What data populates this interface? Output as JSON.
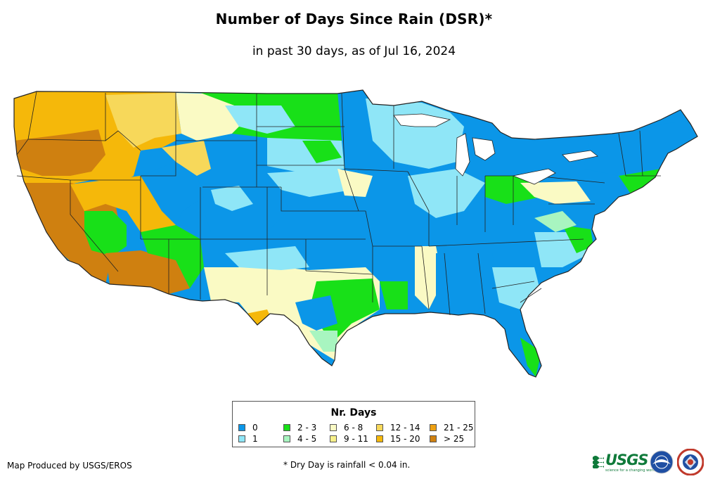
{
  "title": "Number of Days Since Rain (DSR)*",
  "subtitle": "in past 30 days, as of Jul 16, 2024",
  "legend": {
    "title": "Nr. Days",
    "items": [
      {
        "label": "0",
        "color": "#0b96e8"
      },
      {
        "label": "1",
        "color": "#8fe6f7"
      },
      {
        "label": "2 - 3",
        "color": "#18e018"
      },
      {
        "label": "4 - 5",
        "color": "#a8f5c0"
      },
      {
        "label": "6 - 8",
        "color": "#fafac4"
      },
      {
        "label": "9 - 11",
        "color": "#f7f08a"
      },
      {
        "label": "12 - 14",
        "color": "#f7d85a"
      },
      {
        "label": "15 - 20",
        "color": "#f5b80a"
      },
      {
        "label": "21 - 25",
        "color": "#eda013"
      },
      {
        "label": "> 25",
        "color": "#cf8010"
      }
    ]
  },
  "credit": "Map Produced by USGS/EROS",
  "footnote": "* Dry Day is rainfall < 0.04 in.",
  "logos": {
    "usgs": "USGS",
    "usgs_tagline": "science for a changing world"
  }
}
